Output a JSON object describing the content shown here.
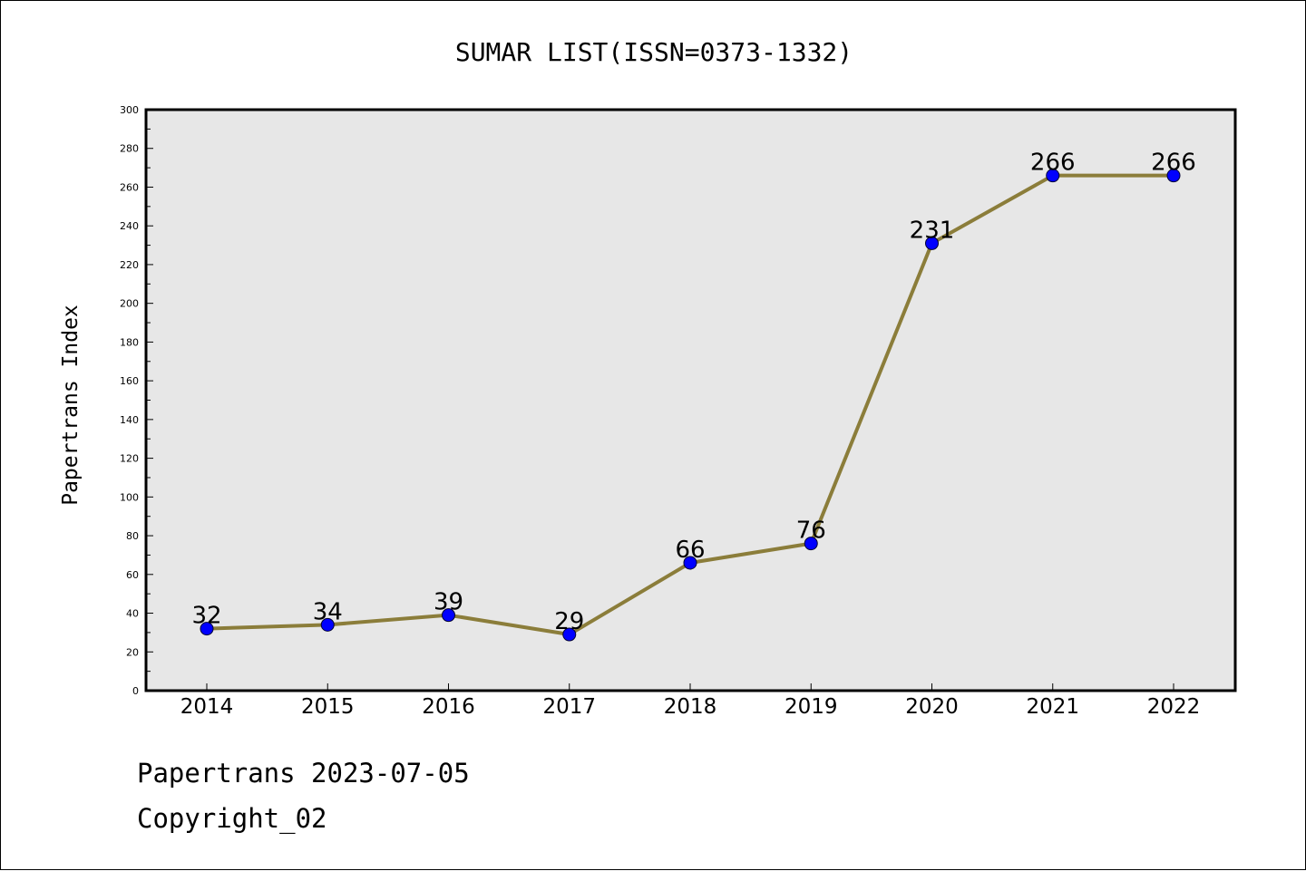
{
  "chart_data": {
    "type": "line",
    "title": "SUMAR LIST(ISSN=0373-1332)",
    "xlabel": "",
    "ylabel": "Papertrans Index",
    "categories": [
      "2014",
      "2015",
      "2016",
      "2017",
      "2018",
      "2019",
      "2020",
      "2021",
      "2022"
    ],
    "series": [
      {
        "values": [
          32,
          34,
          39,
          29,
          66,
          76,
          231,
          266,
          266
        ]
      }
    ],
    "ylim": [
      0,
      300
    ],
    "yticks": [
      0,
      20,
      40,
      60,
      80,
      100,
      120,
      140,
      160,
      180,
      200,
      220,
      240,
      260,
      280,
      300
    ],
    "grid": false,
    "legend": "none",
    "data_labels": true
  },
  "colors": {
    "line": "#8B7D3A",
    "marker": "#0000FF",
    "plot_background": "#E7E7E7",
    "axis": "#000000"
  },
  "footer": {
    "date_line": "Papertrans 2023-07-05",
    "copyright_line": "Copyright_02"
  }
}
